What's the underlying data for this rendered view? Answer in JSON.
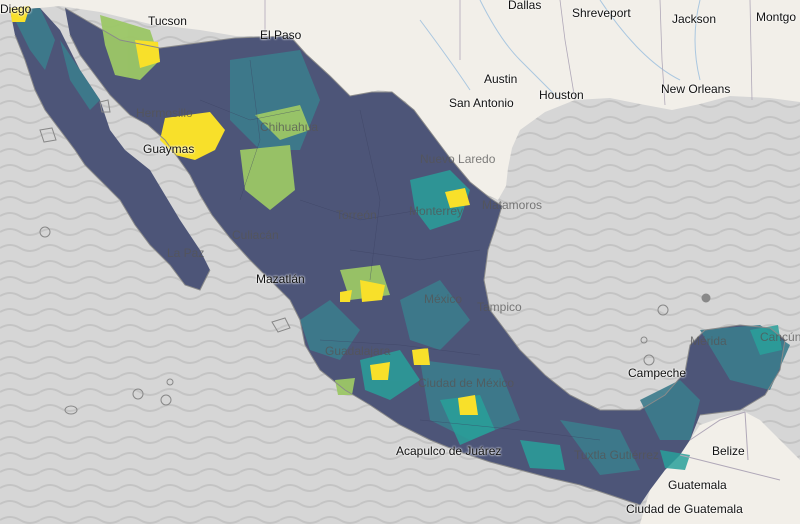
{
  "map": {
    "colors": {
      "ocean": "#d6d6d6",
      "land": "#f2efe9",
      "dark_region": "#4d5578",
      "mid_region": "#3c7c8c",
      "teal_region": "#29a09a",
      "green_region": "#9cc766",
      "yellow_region": "#f8e02a"
    },
    "labels": {
      "san_diego": "Diego",
      "tucson": "Tucson",
      "el_paso": "El Paso",
      "dallas": "Dallas",
      "shreveport": "Shreveport",
      "jackson": "Jackson",
      "montgomery": "Montgo",
      "austin": "Austin",
      "san_antonio": "San Antonio",
      "houston": "Houston",
      "new_orleans": "New Orleans",
      "hermosillo": "Hermosillo",
      "chihuahua": "Chihuahua",
      "guaymas": "Guaymas",
      "nuevo_laredo": "Nuevo Laredo",
      "monterrey": "Monterrey",
      "matamoros": "Matamoros",
      "torreon": "Torreón",
      "culiacan": "Culiacán",
      "la_paz": "La Paz",
      "mazatlan": "Mazatlán",
      "mexico": "México",
      "tampico": "Tampico",
      "guadalajara": "Guadalajara",
      "merida": "Mérida",
      "cancun": "Cancún",
      "campeche": "Campeche",
      "ciudad_de_mexico": "Ciudad de México",
      "acapulco": "Acapulco de Juárez",
      "tuxtla": "Tuxtla Gutiérrez",
      "belize": "Belize",
      "guatemala": "Guatemala",
      "ciudad_guatemala": "Ciudad de Guatemala"
    }
  }
}
